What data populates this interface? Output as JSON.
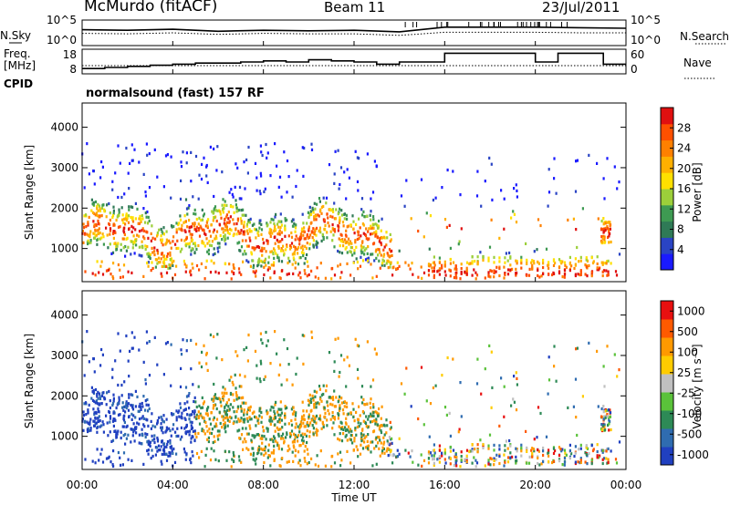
{
  "header": {
    "station": "McMurdo (fitACF)",
    "beam": "Beam 11",
    "date": "23/Jul/2011"
  },
  "summary_panels": {
    "nsky_label": "N.Sky",
    "nsearch_label": "N.Search",
    "nsky_ticks": [
      "10^5",
      "10^0"
    ],
    "nsearch_ticks": [
      "10^5",
      "10^0"
    ],
    "freq_label_top": "Freq.",
    "freq_label_bottom": "[MHz]",
    "freq_ticks": [
      "18",
      "8"
    ],
    "nave_label": "Nave",
    "nave_ticks": [
      "60",
      "0"
    ],
    "cpid_label": "CPID",
    "cpid_text": "normalsound (fast) 157 RF"
  },
  "axes": {
    "x_ticks": [
      "00:00",
      "04:00",
      "08:00",
      "12:00",
      "16:00",
      "20:00",
      "00:00"
    ],
    "x_label": "Time UT",
    "y_ticks": [
      "1000",
      "2000",
      "3000",
      "4000"
    ],
    "y_label": "Slant Range [km]"
  },
  "colorbars": {
    "power": {
      "label": "Power [dB]",
      "ticks": [
        "4",
        "8",
        "12",
        "16",
        "20",
        "24",
        "28"
      ],
      "colors": [
        "#1a1aff",
        "#2a44c4",
        "#2f7a56",
        "#3e9a52",
        "#9ccf3a",
        "#ffe000",
        "#ffb000",
        "#ff8000",
        "#ff5000",
        "#e01010"
      ]
    },
    "velocity": {
      "label": "Velocity [m s⁻¹]",
      "ticks": [
        "1000",
        "500",
        "100",
        "25",
        "-25",
        "-100",
        "-500",
        "-1000"
      ],
      "colors": [
        "#2040c0",
        "#2f6cb0",
        "#2d8a56",
        "#5ac23a",
        "#c0c0c0",
        "#ffcc00",
        "#ff9900",
        "#ff5a00",
        "#e81010"
      ]
    }
  },
  "chart_data": [
    {
      "type": "line",
      "title": "N.Sky / N.Search",
      "x": [
        "00:00",
        "02:00",
        "04:00",
        "06:00",
        "08:00",
        "10:00",
        "12:00",
        "14:00",
        "16:00",
        "18:00",
        "20:00",
        "22:00",
        "00:00"
      ],
      "series": [
        {
          "name": "N.Sky",
          "values": [
            3.1,
            3.0,
            3.2,
            2.8,
            3.0,
            2.9,
            3.0,
            2.7,
            3.6,
            3.6,
            3.6,
            3.5,
            3.4
          ]
        },
        {
          "name": "N.Search",
          "values": [
            2.4,
            2.3,
            2.5,
            2.2,
            2.4,
            2.3,
            2.3,
            2.0,
            2.6,
            2.6,
            2.6,
            2.5,
            2.5
          ]
        }
      ]
    },
    {
      "type": "line",
      "title": "Freq. / Nave",
      "x": [
        "00:00",
        "01:00",
        "02:00",
        "03:00",
        "04:00",
        "05:00",
        "06:00",
        "07:00",
        "08:00",
        "09:00",
        "10:00",
        "11:00",
        "12:00",
        "13:00",
        "14:00",
        "15:00",
        "16:00",
        "17:00",
        "18:00",
        "19:00",
        "20:00",
        "21:00",
        "22:00",
        "23:00",
        "00:00"
      ],
      "series": [
        {
          "name": "Freq. [MHz]",
          "values": [
            10,
            10.5,
            11,
            11.5,
            12,
            12.5,
            12.5,
            13,
            13.5,
            13,
            14,
            13.5,
            13,
            12,
            13,
            13,
            17,
            17,
            17,
            17,
            13,
            17,
            17,
            12,
            12
          ]
        },
        {
          "name": "Nave",
          "values": [
            20,
            20,
            20,
            20,
            20,
            20,
            20,
            20,
            20,
            20,
            20,
            20,
            20,
            20,
            20,
            20,
            20,
            20,
            20,
            20,
            20,
            20,
            20,
            20,
            20
          ]
        }
      ]
    },
    {
      "type": "heatmap",
      "title": "Power [dB]",
      "xlabel": "Time UT",
      "ylabel": "Slant Range [km]",
      "xlim": [
        0,
        24
      ],
      "ylim": [
        180,
        4600
      ],
      "zlim": [
        0,
        30
      ]
    },
    {
      "type": "heatmap",
      "title": "Velocity [m s⁻¹]",
      "xlabel": "Time UT",
      "ylabel": "Slant Range [km]",
      "xlim": [
        0,
        24
      ],
      "ylim": [
        180,
        4600
      ],
      "zlim": [
        -1000,
        1000
      ]
    }
  ]
}
